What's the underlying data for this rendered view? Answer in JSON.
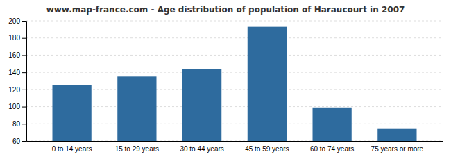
{
  "chart_data": {
    "type": "bar",
    "title": "www.map-france.com - Age distribution of population of Haraucourt in 2007",
    "categories": [
      "0 to 14 years",
      "15 to 29 years",
      "30 to 44 years",
      "45 to 59 years",
      "60 to 74 years",
      "75 years or more"
    ],
    "values": [
      125,
      135,
      144,
      193,
      99,
      74
    ],
    "color": "#2e6b9e",
    "ylim": [
      60,
      200
    ],
    "yticks": [
      60,
      80,
      100,
      120,
      140,
      160,
      180,
      200
    ],
    "grid": true
  }
}
